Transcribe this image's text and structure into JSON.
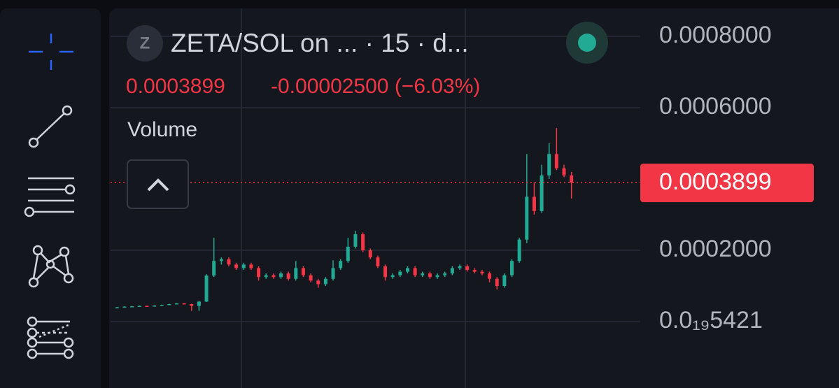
{
  "header": {
    "symbol_initial": "Z",
    "title": "ZETA/SOL on ...  · 15 · d...",
    "price": "0.0003899",
    "change": "-0.00002500 (−6.03%)",
    "indicator": "Volume"
  },
  "chart_data": {
    "type": "candlestick",
    "up_color": "#22ab94",
    "down_color": "#f23645",
    "grid": true,
    "ylim": [
      -0.0001863,
      0.0008726
    ],
    "yticks": [
      {
        "value": 0.0008,
        "label": "0.0008000"
      },
      {
        "value": 0.0006,
        "label": "0.0006000"
      },
      {
        "value": 0.0002,
        "label": "0.0002000"
      },
      {
        "value": 5.421e-20,
        "label": "0.0₁₉5421"
      }
    ],
    "last_price": {
      "value": 0.0003899,
      "label": "0.0003899"
    },
    "candles": [
      [
        3.92e-05,
        4.1e-05,
        3.8e-05,
        4e-05
      ],
      [
        4e-05,
        4.3e-05,
        3.9e-05,
        4.2e-05
      ],
      [
        4.2e-05,
        4.4e-05,
        4.1e-05,
        4.3e-05
      ],
      [
        4.3e-05,
        4.5e-05,
        4.2e-05,
        4.4e-05
      ],
      [
        4.4e-05,
        4.5e-05,
        4.2e-05,
        4.3e-05
      ],
      [
        4.3e-05,
        4.6e-05,
        4.2e-05,
        4.5e-05
      ],
      [
        4.5e-05,
        4.8e-05,
        4.4e-05,
        4.7e-05
      ],
      [
        4.7e-05,
        5e-05,
        4.6e-05,
        4.9e-05
      ],
      [
        4.9e-05,
        5.2e-05,
        4.8e-05,
        5.1e-05
      ],
      [
        5.1e-05,
        5.2e-05,
        4.8e-05,
        4.9e-05
      ],
      [
        4.9e-05,
        5e-05,
        3e-05,
        4.4e-05
      ],
      [
        4.4e-05,
        5.8e-05,
        3e-05,
        5.6e-05
      ],
      [
        5.6e-05,
        0.000133,
        5.5e-05,
        0.000129
      ],
      [
        0.000129,
        0.000235,
        0.000125,
        0.00017
      ],
      [
        0.00017,
        0.00018,
        0.00016,
        0.000175
      ],
      [
        0.000175,
        0.00018,
        0.000155,
        0.00016
      ],
      [
        0.00016,
        0.000165,
        0.000145,
        0.00015
      ],
      [
        0.00015,
        0.000165,
        0.000145,
        0.00016
      ],
      [
        0.00016,
        0.000165,
        0.000145,
        0.00015
      ],
      [
        0.00015,
        0.000155,
        0.000115,
        0.000125
      ],
      [
        0.000125,
        0.000135,
        0.00012,
        0.00013
      ],
      [
        0.00013,
        0.000135,
        0.00012,
        0.000125
      ],
      [
        0.000125,
        0.00014,
        0.00012,
        0.000135
      ],
      [
        0.000135,
        0.00014,
        0.000115,
        0.00012
      ],
      [
        0.00012,
        0.00017,
        0.000115,
        0.00015
      ],
      [
        0.00015,
        0.000155,
        0.000125,
        0.00013
      ],
      [
        0.00013,
        0.000135,
        0.00011,
        0.000115
      ],
      [
        0.000115,
        0.00012,
        9.5e-05,
        0.000105
      ],
      [
        0.000105,
        0.000125,
        0.0001,
        0.00012
      ],
      [
        0.00012,
        0.000172,
        0.000115,
        0.00015
      ],
      [
        0.00015,
        0.000175,
        0.000145,
        0.00017
      ],
      [
        0.00017,
        0.000235,
        0.000165,
        0.00021
      ],
      [
        0.00021,
        0.000255,
        0.000205,
        0.000245
      ],
      [
        0.000245,
        0.00025,
        0.000195,
        0.0002
      ],
      [
        0.0002,
        0.000205,
        0.000175,
        0.00018
      ],
      [
        0.00018,
        0.000185,
        0.00015,
        0.000155
      ],
      [
        0.000155,
        0.00016,
        0.000115,
        0.000125
      ],
      [
        0.000125,
        0.000135,
        0.00012,
        0.00013
      ],
      [
        0.00013,
        0.000145,
        0.000125,
        0.00014
      ],
      [
        0.00014,
        0.000155,
        0.000135,
        0.00015
      ],
      [
        0.00015,
        0.000155,
        0.000125,
        0.00013
      ],
      [
        0.00013,
        0.00014,
        0.000125,
        0.000135
      ],
      [
        0.000135,
        0.00014,
        0.00012,
        0.000125
      ],
      [
        0.000125,
        0.000135,
        0.00012,
        0.00013
      ],
      [
        0.00013,
        0.00014,
        0.000125,
        0.000135
      ],
      [
        0.000135,
        0.000155,
        0.00013,
        0.00015
      ],
      [
        0.00015,
        0.00016,
        0.000145,
        0.000155
      ],
      [
        0.000155,
        0.00016,
        0.00014,
        0.000145
      ],
      [
        0.000145,
        0.00015,
        0.000135,
        0.00014
      ],
      [
        0.00014,
        0.000145,
        0.00013,
        0.000135
      ],
      [
        0.000135,
        0.00014,
        0.00011,
        0.00012
      ],
      [
        0.00012,
        0.000125,
        9e-05,
        0.0001
      ],
      [
        0.0001,
        0.000135,
        9.5e-05,
        0.00013
      ],
      [
        0.00013,
        0.000175,
        0.000125,
        0.00017
      ],
      [
        0.00017,
        0.000235,
        0.000165,
        0.00023
      ],
      [
        0.00023,
        0.00047,
        0.00022,
        0.00035
      ],
      [
        0.00035,
        0.00039,
        0.0003,
        0.00031
      ],
      [
        0.00031,
        0.00044,
        0.000305,
        0.00041
      ],
      [
        0.00041,
        0.0005,
        0.0004,
        0.00047
      ],
      [
        0.00047,
        0.000543,
        0.000425,
        0.00043
      ],
      [
        0.00043,
        0.00044,
        0.000405,
        0.00041
      ],
      [
        0.00041,
        0.00042,
        0.000345,
        0.0003899
      ]
    ]
  }
}
